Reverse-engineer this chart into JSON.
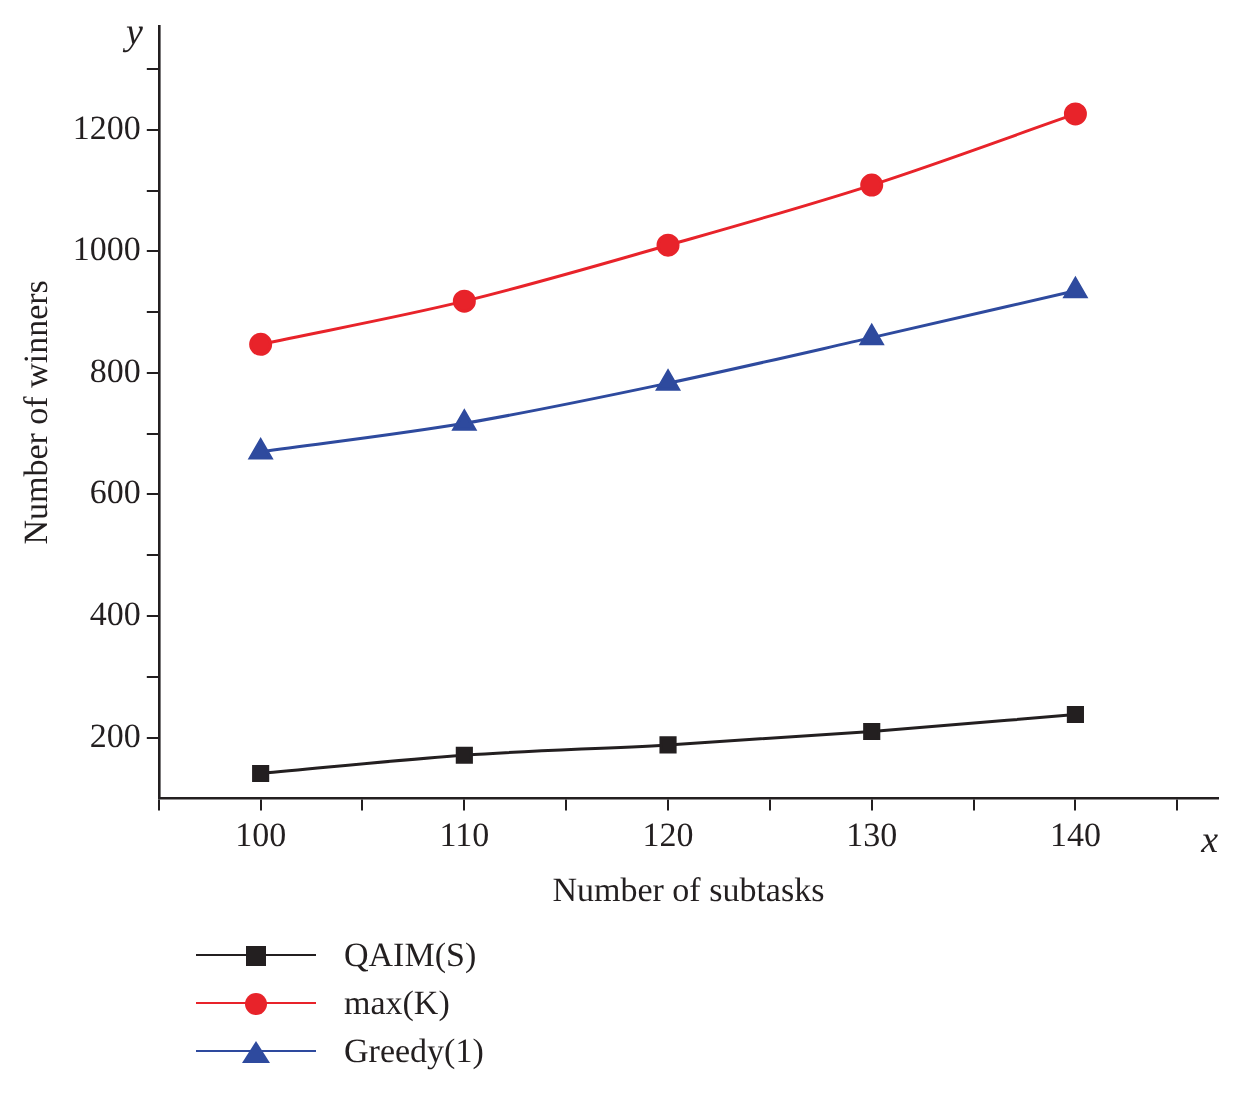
{
  "chart_data": {
    "type": "line",
    "xlabel": "Number of subtasks",
    "ylabel": "Number of winners",
    "annotations": [
      "x",
      "y"
    ],
    "x": [
      100,
      110,
      120,
      130,
      140
    ],
    "series": [
      {
        "name": "QAIM(S)",
        "color": "#231f20",
        "marker": "square",
        "values": [
          141,
          171,
          188,
          210,
          238
        ]
      },
      {
        "name": "max(K)",
        "color": "#e8232a",
        "marker": "circle",
        "values": [
          847,
          918,
          1010,
          1109,
          1226
        ]
      },
      {
        "name": "Greedy(1)",
        "color": "#2e4a9e",
        "marker": "triangle",
        "values": [
          670,
          717,
          783,
          858,
          935
        ]
      }
    ],
    "xlim": [
      95,
      147
    ],
    "ylim": [
      100,
      1370
    ],
    "xticks": [
      {
        "value": 95,
        "label": null
      },
      100,
      {
        "value": 105,
        "label": null
      },
      110,
      {
        "value": 115,
        "label": null
      },
      120,
      {
        "value": 125,
        "label": null
      },
      130,
      {
        "value": 135,
        "label": null
      },
      140,
      {
        "value": 145,
        "label": null
      }
    ],
    "yticks": [
      200,
      {
        "value": 300,
        "label": null
      },
      400,
      {
        "value": 500,
        "label": null
      },
      600,
      {
        "value": 700,
        "label": null
      },
      800,
      {
        "value": 900,
        "label": null
      },
      1000,
      {
        "value": 1100,
        "label": null
      },
      1200,
      {
        "value": 1300,
        "label": null
      }
    ],
    "grid": false,
    "legend": "bottom left",
    "line_style": "solid"
  }
}
